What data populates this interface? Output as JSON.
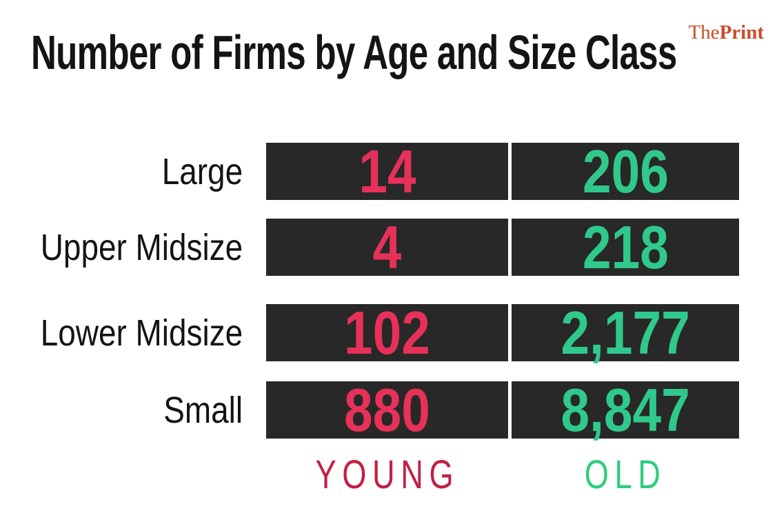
{
  "title": "Number of Firms by Age and Size Class",
  "logo": {
    "the": "The",
    "print": "Print"
  },
  "colors": {
    "young": "#E73159",
    "old": "#2FC98C",
    "young_label": "#C32045",
    "old_label": "#2DCD7C",
    "cell_bg": "#282828",
    "ink": "#141414",
    "logo": "#CC4A27",
    "page_bg": "#FFFFFF"
  },
  "table": {
    "column_labels": {
      "young": "YOUNG",
      "old": "OLD"
    },
    "rows": [
      {
        "label": "Large",
        "young": "14",
        "old": "206"
      },
      {
        "label": "Upper Midsize",
        "young": "4",
        "old": "218"
      },
      {
        "label": "Lower Midsize",
        "young": "102",
        "old": "2,177"
      },
      {
        "label": "Small",
        "young": "880",
        "old": "8,847"
      }
    ]
  },
  "chart_data": {
    "type": "table",
    "title": "Number of Firms by Age and Size Class",
    "categories": [
      "Large",
      "Upper Midsize",
      "Lower Midsize",
      "Small"
    ],
    "series": [
      {
        "name": "YOUNG",
        "values": [
          14,
          4,
          102,
          880
        ]
      },
      {
        "name": "OLD",
        "values": [
          206,
          218,
          2177,
          8847
        ]
      }
    ],
    "legend_position": "bottom",
    "grid": false,
    "notes": "Dark cell matrix; YOUNG column in red, OLD column in green; row labels right-aligned at left."
  }
}
